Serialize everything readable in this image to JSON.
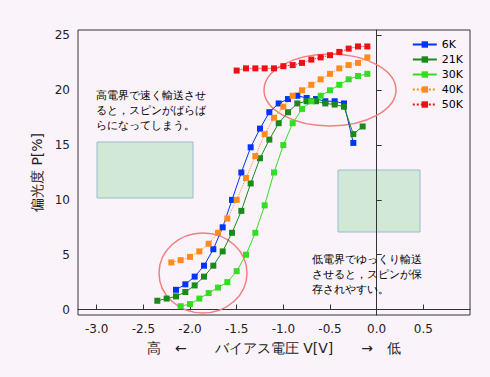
{
  "chart_data": {
    "type": "line",
    "x_label": "高　←　　バイアス電圧 V[V]　　→　低",
    "y_label": "偏光度 P[%]",
    "xlim": [
      -3.2,
      1.0
    ],
    "xticks": [
      {
        "value": -3.0,
        "label": "-3.0"
      },
      {
        "value": -2.5,
        "label": "-2.5"
      },
      {
        "value": -2.0,
        "label": "-2.0"
      },
      {
        "value": -1.5,
        "label": "-1.5"
      },
      {
        "value": -1.0,
        "label": "-1.0"
      },
      {
        "value": -0.5,
        "label": "-0.5"
      },
      {
        "value": 0.0,
        "label": "0.0"
      },
      0.5
    ],
    "ylim": [
      -0.5,
      25.5
    ],
    "yticks": [
      0,
      5,
      10,
      15,
      20,
      25
    ],
    "grid": false,
    "legend": "upper right",
    "marker": "square",
    "annotations": [
      "高電界で速く輸送させ\nると，スピンがばらば\nらになってしまう。",
      "低電界でゆっくり輸送\nさせると，スピンが保\n存されやすい。"
    ],
    "series": [
      {
        "name": "6K",
        "color": "#0033ff",
        "line_style": "solid",
        "x": [
          -2.15,
          -2.05,
          -1.95,
          -1.85,
          -1.75,
          -1.65,
          -1.55,
          -1.45,
          -1.35,
          -1.25,
          -1.15,
          -1.05,
          -0.95,
          -0.85,
          -0.75,
          -0.65,
          -0.55,
          -0.45,
          -0.35,
          -0.25
        ],
        "values": [
          1.8,
          2.3,
          3.0,
          4.0,
          5.5,
          7.5,
          10.0,
          12.5,
          14.8,
          16.5,
          18.0,
          18.8,
          19.2,
          19.5,
          19.3,
          19.2,
          19.0,
          19.0,
          18.8,
          15.2
        ]
      },
      {
        "name": "21K",
        "color": "#1a8a1a",
        "line_style": "solid",
        "x": [
          -2.35,
          -2.25,
          -2.15,
          -2.05,
          -1.95,
          -1.85,
          -1.75,
          -1.65,
          -1.55,
          -1.45,
          -1.35,
          -1.25,
          -1.15,
          -1.05,
          -0.95,
          -0.85,
          -0.75,
          -0.65,
          -0.55,
          -0.45,
          -0.35,
          -0.25,
          -0.15
        ],
        "values": [
          0.8,
          1.0,
          1.2,
          1.6,
          2.2,
          3.0,
          4.0,
          5.3,
          7.0,
          9.0,
          11.5,
          13.8,
          15.5,
          17.0,
          18.0,
          18.8,
          19.0,
          19.0,
          18.8,
          18.7,
          18.5,
          16.0,
          16.7
        ]
      },
      {
        "name": "30K",
        "color": "#33dd22",
        "line_style": "solid",
        "x": [
          -2.1,
          -2.0,
          -1.9,
          -1.8,
          -1.7,
          -1.6,
          -1.5,
          -1.4,
          -1.3,
          -1.2,
          -1.1,
          -1.0,
          -0.9,
          -0.8,
          -0.7,
          -0.6,
          -0.5,
          -0.4,
          -0.3,
          -0.2,
          -0.1
        ],
        "values": [
          0.3,
          0.5,
          1.0,
          1.5,
          2.0,
          2.5,
          3.5,
          5.0,
          7.0,
          9.5,
          12.5,
          15.0,
          17.0,
          18.3,
          19.0,
          19.5,
          20.0,
          20.5,
          21.0,
          21.3,
          21.5
        ]
      },
      {
        "name": "40K",
        "color": "#ff8c1a",
        "line_style": "dotted",
        "x": [
          -2.2,
          -2.1,
          -2.0,
          -1.9,
          -1.8,
          -1.7,
          -1.6,
          -1.5,
          -1.4,
          -1.3,
          -1.2,
          -1.1,
          -1.0,
          -0.9,
          -0.8,
          -0.7,
          -0.6,
          -0.5,
          -0.4,
          -0.3,
          -0.2,
          -0.1
        ],
        "values": [
          4.3,
          4.5,
          4.8,
          5.3,
          6.0,
          7.0,
          8.3,
          10.0,
          12.0,
          14.0,
          16.0,
          17.5,
          18.5,
          19.5,
          20.0,
          20.5,
          21.0,
          21.5,
          22.0,
          22.3,
          22.5,
          23.0
        ]
      },
      {
        "name": "50K",
        "color": "#ee1111",
        "line_style": "dotted",
        "x": [
          -1.5,
          -1.4,
          -1.3,
          -1.2,
          -1.1,
          -1.0,
          -0.9,
          -0.8,
          -0.7,
          -0.6,
          -0.5,
          -0.4,
          -0.3,
          -0.2,
          -0.1
        ],
        "values": [
          21.8,
          22.0,
          22.0,
          22.0,
          22.0,
          22.2,
          22.3,
          22.5,
          22.8,
          23.0,
          23.2,
          23.5,
          23.8,
          24.0,
          24.0
        ]
      }
    ]
  }
}
